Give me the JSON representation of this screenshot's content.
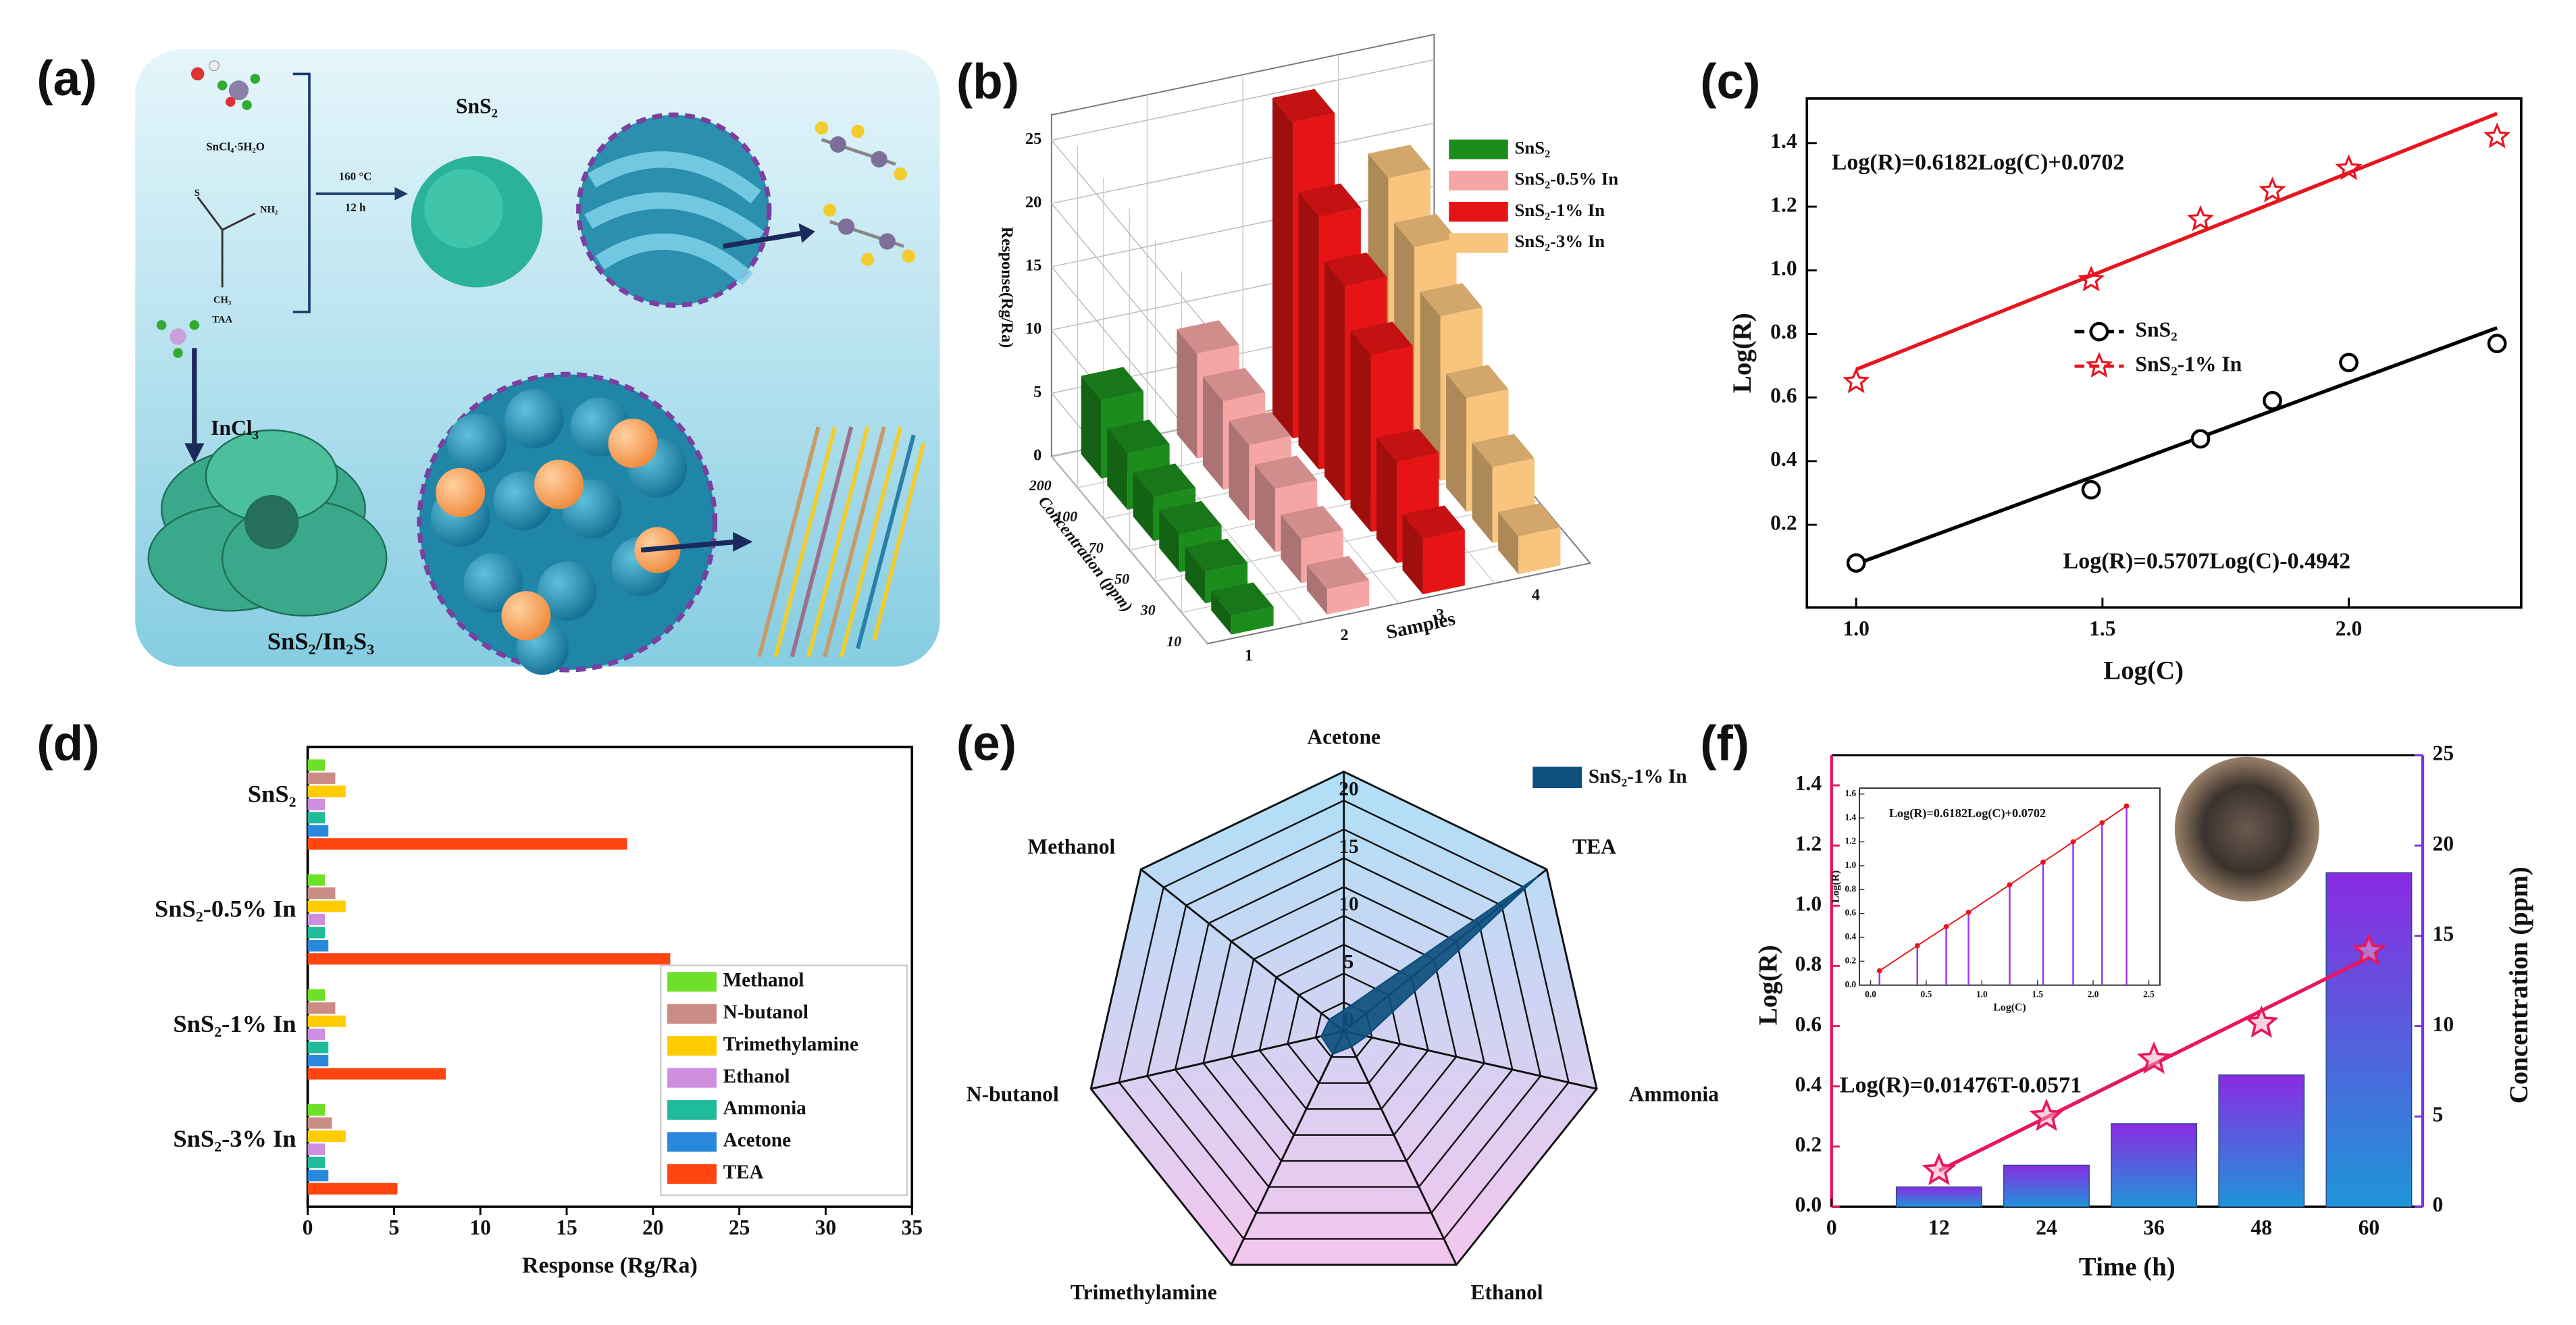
{
  "diagram": {
    "label": "(a)",
    "precursor": "SnCl₄·5H₂O",
    "atom_s": "S",
    "amine": "NH₂",
    "methyl": "CH₃",
    "precursor_2": "TAA",
    "temperature": "160 °C",
    "duration": "12 h",
    "product": "SnS₂",
    "reagent": "InCl₃",
    "composite": "SnS₂/In₂S₃"
  },
  "chart_data": [
    {
      "type": "bar3d",
      "label": "(b)",
      "ylabel": "Response(Rg/Ra)",
      "xlabel": "Samples",
      "zlabel": "Concentration (ppm)",
      "categories": [
        10,
        30,
        50,
        70,
        100,
        200
      ],
      "samples": [
        1,
        2,
        3,
        4
      ],
      "ylim": [
        0,
        27
      ],
      "yticks": [
        0,
        5,
        10,
        15,
        20,
        25
      ],
      "series": [
        {
          "name": "SnS₂",
          "color": "#1c8c1c",
          "values": [
            1.5,
            2.5,
            3,
            3.5,
            4.5,
            6.2
          ]
        },
        {
          "name": "SnS₂-0.5% In",
          "color": "#f6a5a5",
          "values": [
            2,
            3.5,
            5,
            6,
            7,
            8.3
          ]
        },
        {
          "name": "SnS₂-1% In",
          "color": "#e61414",
          "values": [
            4.4,
            8,
            14,
            17,
            20,
            25
          ]
        },
        {
          "name": "SnS₂-3% In",
          "color": "#f8c47e",
          "values": [
            3,
            6,
            9,
            13,
            16,
            19
          ]
        }
      ],
      "legend": "top-right"
    },
    {
      "type": "scatter",
      "label": "(c)",
      "xlabel": "Log(C)",
      "ylabel": "Log(R)",
      "xlim": [
        0.9,
        2.35
      ],
      "ylim": [
        -0.06,
        1.54
      ],
      "xticks": [
        {
          "value": 1,
          "label": "1.0"
        },
        1.5,
        {
          "value": 2,
          "label": "2.0"
        }
      ],
      "yticks": [
        0.2,
        0.4,
        0.6,
        0.8,
        {
          "value": 1,
          "label": "1.0"
        },
        1.2,
        1.4
      ],
      "x": [
        1.0,
        1.477,
        1.699,
        1.845,
        2.0,
        2.301
      ],
      "series": [
        {
          "name": "SnS₂",
          "color": "#000000",
          "marker": "circle",
          "values": [
            0.08,
            0.31,
            0.47,
            0.59,
            0.71,
            0.77
          ],
          "fit": {
            "slope": 0.5707,
            "intercept": -0.4942,
            "label": "Log(R)=0.5707Log(C)-0.4942"
          }
        },
        {
          "name": "SnS₂-1% In",
          "color": "#e8141e",
          "marker": "star",
          "values": [
            0.65,
            0.97,
            1.16,
            1.25,
            1.32,
            1.42
          ],
          "fit": {
            "slope": 0.6182,
            "intercept": 0.0702,
            "label": "Log(R)=0.6182Log(C)+0.0702"
          }
        }
      ],
      "legend": "center"
    },
    {
      "type": "barh",
      "label": "(d)",
      "xlabel": "Response (Rg/Ra)",
      "categories": [
        "SnS₂",
        "SnS₂-0.5% In",
        "SnS₂-1% In",
        "SnS₂-3% In"
      ],
      "xlim": [
        0,
        35
      ],
      "xticks": [
        0,
        5,
        10,
        15,
        20,
        25,
        30,
        35
      ],
      "series": [
        {
          "name": "Methanol",
          "color": "#6ee02a",
          "values": [
            1.0,
            1.0,
            1.0,
            1.0
          ]
        },
        {
          "name": "N-butanol",
          "color": "#c98d86",
          "values": [
            1.6,
            1.6,
            1.6,
            1.4
          ]
        },
        {
          "name": "Trimethylamine",
          "color": "#ffcc00",
          "values": [
            2.2,
            2.2,
            2.2,
            2.2
          ]
        },
        {
          "name": "Ethanol",
          "color": "#cf8fe0",
          "values": [
            1.0,
            1.0,
            1.0,
            1.0
          ]
        },
        {
          "name": "Ammonia",
          "color": "#20bb9a",
          "values": [
            1.0,
            1.0,
            1.2,
            1.0
          ]
        },
        {
          "name": "Acetone",
          "color": "#2a88dc",
          "values": [
            1.2,
            1.2,
            1.2,
            1.2
          ]
        },
        {
          "name": "TEA",
          "color": "#ff4611",
          "values": [
            18.5,
            21,
            8,
            5.2
          ]
        }
      ],
      "legend": "bottom-right"
    },
    {
      "type": "radar",
      "label": "(e)",
      "categories": [
        "Acetone",
        "TEA",
        "Ammonia",
        "Ethanol",
        "Trimethylamine",
        "N-butanol",
        "Methanol"
      ],
      "rlim": [
        0,
        22.5
      ],
      "rticks": [
        0,
        5,
        10,
        15,
        20
      ],
      "minor_rticks": [
        2.5,
        7.5,
        12.5,
        17.5,
        22.5
      ],
      "series": [
        {
          "name": "SnS₂-1% In",
          "color": "#0e4f7d",
          "values": [
            1.8,
            21.5,
            2,
            1.5,
            2.2,
            2,
            1.6
          ]
        }
      ],
      "legend": "top-right"
    },
    {
      "type": "combo",
      "label": "(f)",
      "xlabel": "Time (h)",
      "ylabel": "Log(R)",
      "y2label": "Concentration (ppm)",
      "xlim": [
        0,
        66
      ],
      "xticks": [
        0,
        12,
        24,
        36,
        48,
        60
      ],
      "ylim": [
        0,
        1.5
      ],
      "yticks": [
        {
          "value": 0,
          "label": "0.0"
        },
        0.2,
        0.4,
        0.6,
        0.8,
        {
          "value": 1,
          "label": "1.0"
        },
        1.2,
        1.4
      ],
      "y2lim": [
        0,
        25
      ],
      "y2ticks": [
        0,
        5,
        10,
        15,
        20,
        25
      ],
      "x": [
        12,
        24,
        36,
        48,
        60
      ],
      "series": [
        {
          "type": "bar",
          "axis": "y2",
          "color": "#7a36d8",
          "values": [
            1.1,
            2.3,
            4.6,
            7.3,
            18.5
          ]
        },
        {
          "type": "line",
          "axis": "y",
          "color": "#e8175d",
          "values": [
            0.12,
            0.3,
            0.49,
            0.61,
            0.85
          ],
          "fit": {
            "slope": 0.01476,
            "intercept": -0.0571,
            "label": "Log(R)=0.01476T-0.0571"
          }
        }
      ],
      "inset": {
        "title": "Log(R)=0.6182Log(C)+0.0702",
        "xlabel": "Log(C)",
        "ylabel": "Log(R)",
        "xlim": [
          -0.1,
          2.6
        ],
        "ylim": [
          0,
          1.65
        ],
        "xticks": [
          {
            "value": 0,
            "label": "0.0"
          },
          0.5,
          {
            "value": 1,
            "label": "1.0"
          },
          1.5,
          {
            "value": 2,
            "label": "2.0"
          },
          2.5
        ],
        "yticks": [
          {
            "value": 0,
            "label": "0.0"
          },
          0.2,
          0.4,
          0.6,
          0.8,
          {
            "value": 1,
            "label": "1.0"
          },
          1.2,
          1.4,
          1.6
        ],
        "x": [
          0.08,
          0.42,
          0.68,
          0.88,
          1.25,
          1.55,
          1.82,
          2.08,
          2.3
        ],
        "values": [
          0.12,
          0.33,
          0.49,
          0.61,
          0.84,
          1.03,
          1.2,
          1.36,
          1.5
        ],
        "color": "#e8141e",
        "stem_color": "#9b30ff"
      }
    }
  ]
}
